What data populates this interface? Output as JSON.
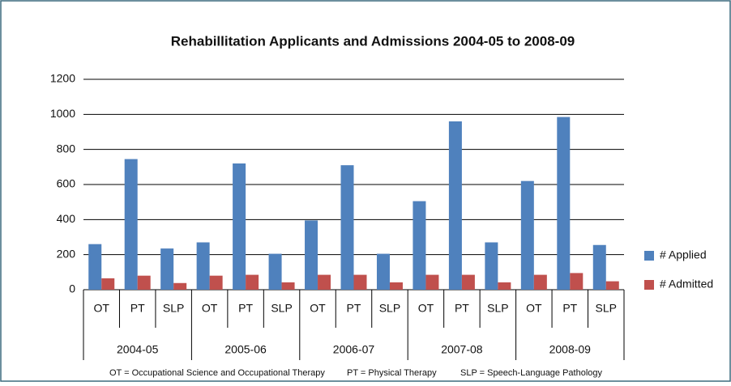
{
  "chart_data": {
    "type": "bar",
    "title": "Rehabillitation Applicants and Admissions 2004-05 to 2008-09",
    "categories": [
      "OT",
      "PT",
      "SLP",
      "OT",
      "PT",
      "SLP",
      "OT",
      "PT",
      "SLP",
      "OT",
      "PT",
      "SLP",
      "OT",
      "PT",
      "SLP"
    ],
    "groups": [
      "2004-05",
      "2005-06",
      "2006-07",
      "2007-08",
      "2008-09"
    ],
    "series": [
      {
        "name": "# Applied",
        "color": "#4f81bd",
        "values": [
          260,
          745,
          235,
          270,
          720,
          205,
          395,
          710,
          205,
          505,
          960,
          270,
          620,
          985,
          255
        ]
      },
      {
        "name": "# Admitted",
        "color": "#c0504d",
        "values": [
          65,
          80,
          38,
          80,
          85,
          42,
          85,
          85,
          42,
          85,
          85,
          42,
          85,
          95,
          48
        ]
      }
    ],
    "ylim": [
      0,
      1200
    ],
    "yticks": [
      0,
      200,
      400,
      600,
      800,
      1000,
      1200
    ],
    "grid": true,
    "legend": "right",
    "footnotes": [
      "OT = Occupational Science and Occupational Therapy",
      "PT = Physical Therapy",
      "SLP = Speech-Language Pathology"
    ]
  }
}
